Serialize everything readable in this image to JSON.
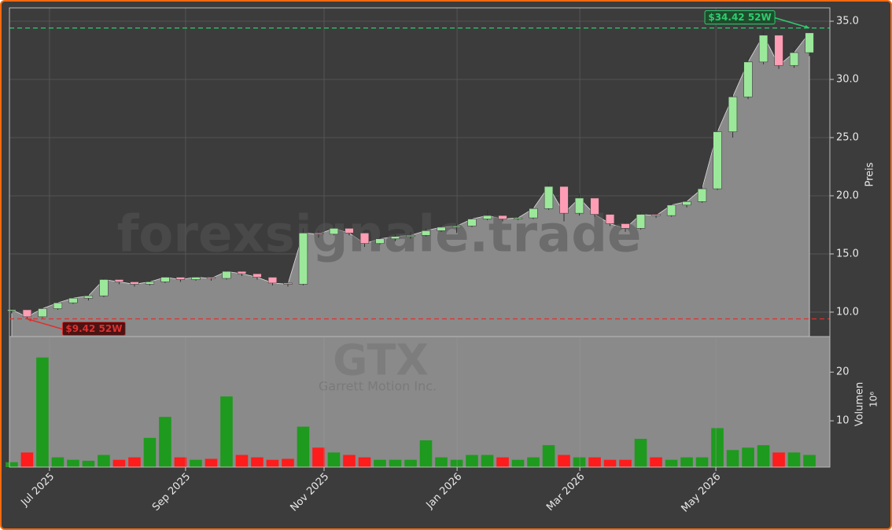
{
  "chart_data": {
    "type": "candlestick",
    "watermark": "forexsignale.trade",
    "symbol": "GTX",
    "company": "Garrett Motion Inc.",
    "price_label": "Preis",
    "volume_label": "Volumen",
    "volume_unit": "10⁶",
    "up_color": "#9be89b",
    "down_color": "#ff9db5",
    "volume_up_color": "#1e9a1e",
    "volume_down_color": "#ff1c1c",
    "area_color": "#8a8a8a",
    "grid": true,
    "open": [
      10.1,
      10.2,
      9.6,
      10.3,
      10.8,
      11.2,
      11.4,
      12.8,
      12.6,
      12.4,
      12.6,
      13.0,
      12.8,
      13.0,
      12.9,
      13.5,
      13.3,
      13.0,
      12.5,
      12.4,
      16.8,
      16.7,
      17.2,
      16.8,
      15.9,
      16.3,
      16.5,
      16.6,
      17.0,
      17.3,
      17.4,
      18.0,
      18.3,
      18.0,
      18.1,
      18.9,
      20.8,
      18.5,
      19.8,
      18.4,
      17.6,
      17.2,
      18.4,
      18.3,
      19.2,
      19.5,
      20.6,
      25.5,
      28.5,
      31.5,
      33.8,
      31.2,
      32.3
    ],
    "high": [
      10.4,
      10.3,
      10.4,
      10.9,
      11.3,
      11.6,
      13.0,
      12.9,
      12.7,
      12.8,
      13.2,
      13.1,
      13.2,
      13.1,
      13.7,
      13.6,
      13.4,
      13.1,
      12.7,
      17.2,
      17.0,
      17.5,
      17.3,
      16.9,
      16.5,
      16.7,
      16.9,
      17.2,
      17.5,
      17.6,
      18.2,
      18.8,
      18.4,
      18.3,
      19.2,
      21.2,
      21.0,
      20.2,
      19.9,
      18.6,
      17.8,
      18.6,
      18.6,
      19.4,
      19.7,
      21.0,
      26.0,
      28.8,
      31.9,
      34.2,
      33.9,
      32.8,
      34.42
    ],
    "low": [
      9.9,
      9.42,
      9.5,
      10.2,
      10.7,
      11.0,
      11.3,
      12.4,
      12.2,
      12.3,
      12.5,
      12.6,
      12.7,
      12.7,
      12.8,
      13.1,
      12.8,
      12.3,
      12.2,
      12.3,
      16.4,
      16.6,
      16.6,
      15.6,
      15.8,
      16.1,
      16.3,
      16.5,
      16.9,
      16.8,
      17.3,
      17.9,
      17.8,
      17.9,
      18.0,
      18.8,
      17.8,
      18.3,
      18.2,
      17.4,
      16.9,
      17.1,
      18.1,
      18.2,
      19.0,
      19.4,
      20.5,
      25.0,
      28.3,
      31.3,
      30.9,
      31.0,
      32.0
    ],
    "close": [
      10.2,
      9.6,
      10.3,
      10.8,
      11.2,
      11.4,
      12.8,
      12.6,
      12.4,
      12.6,
      13.0,
      12.8,
      13.0,
      12.9,
      13.5,
      13.3,
      13.0,
      12.5,
      12.4,
      16.8,
      16.7,
      17.2,
      16.8,
      15.9,
      16.3,
      16.5,
      16.6,
      17.0,
      17.3,
      17.4,
      18.0,
      18.3,
      18.0,
      18.1,
      18.9,
      20.8,
      18.5,
      19.8,
      18.4,
      17.6,
      17.2,
      18.4,
      18.3,
      19.2,
      19.5,
      20.6,
      25.5,
      28.5,
      31.5,
      33.8,
      31.2,
      32.3,
      34.0
    ],
    "volume": [
      1.5,
      3.5,
      23.0,
      2.5,
      2.0,
      1.8,
      3.0,
      2.0,
      2.5,
      6.5,
      10.8,
      2.5,
      2.0,
      2.2,
      15.0,
      3.0,
      2.5,
      2.0,
      2.2,
      8.8,
      4.5,
      3.5,
      3.0,
      2.5,
      2.0,
      2.0,
      2.0,
      6.0,
      2.5,
      2.0,
      3.0,
      3.0,
      2.5,
      2.0,
      2.5,
      5.0,
      3.0,
      2.5,
      2.5,
      2.0,
      2.0,
      6.3,
      2.5,
      2.0,
      2.5,
      2.5,
      8.5,
      4.0,
      4.5,
      5.0,
      3.5,
      3.5,
      3.0
    ],
    "xlim": [
      -0.15,
      53.33
    ],
    "xticks": [
      {
        "value": 2.46,
        "label": "Jul 2025"
      },
      {
        "value": 11.33,
        "label": "Sep 2025"
      },
      {
        "value": 20.36,
        "label": "Nov 2025"
      },
      {
        "value": 29.03,
        "label": "Jan 2026"
      },
      {
        "value": 37.03,
        "label": "Mar 2026"
      },
      {
        "value": 45.9,
        "label": "May 2026"
      }
    ],
    "ylim": [
      7.9,
      36.15
    ],
    "yticks": [
      {
        "value": 10,
        "label": "10.0"
      },
      {
        "value": 15,
        "label": "15.0"
      },
      {
        "value": 20,
        "label": "20.0"
      },
      {
        "value": 25,
        "label": "25.0"
      },
      {
        "value": 30,
        "label": "30.0"
      },
      {
        "value": 35,
        "label": "35.0"
      }
    ],
    "y2lim": [
      0.5,
      27.3
    ],
    "y2ticks": [
      10,
      20
    ],
    "annotations": [
      {
        "text": "$34.42 52W",
        "value": 34.42,
        "color": "#2ecc71",
        "at": 52
      },
      {
        "text": "$9.42 52W",
        "value": 9.42,
        "color": "#e03030",
        "at": 1
      }
    ]
  }
}
